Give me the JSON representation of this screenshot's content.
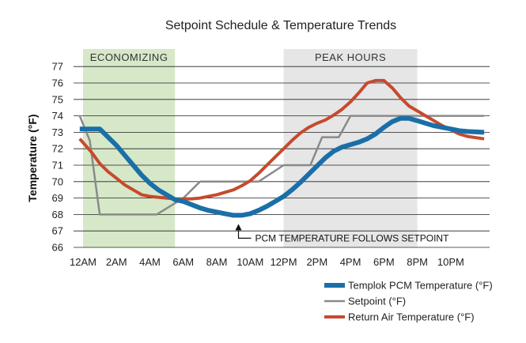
{
  "chart_data": {
    "type": "line",
    "title": "Setpoint Schedule & Temperature Trends",
    "ylabel": "Temperature (°F)",
    "xlabel": "",
    "ylim": [
      66,
      77
    ],
    "yticks": [
      66,
      67,
      68,
      69,
      70,
      71,
      72,
      73,
      74,
      75,
      76,
      77
    ],
    "xlim": [
      0,
      24
    ],
    "xticks": [
      {
        "label": "12AM",
        "h": 0
      },
      {
        "label": "2AM",
        "h": 2
      },
      {
        "label": "4AM",
        "h": 4
      },
      {
        "label": "6AM",
        "h": 6
      },
      {
        "label": "8AM",
        "h": 8
      },
      {
        "label": "10AM",
        "h": 10
      },
      {
        "label": "12PM",
        "h": 12
      },
      {
        "label": "2PM",
        "h": 14
      },
      {
        "label": "4PM",
        "h": 16
      },
      {
        "label": "6PM",
        "h": 18
      },
      {
        "label": "8PM",
        "h": 20
      },
      {
        "label": "10PM",
        "h": 22
      }
    ],
    "bands": [
      {
        "label": "ECONOMIZING",
        "start": 0,
        "end": 5.5,
        "color": "#d6e8c8"
      },
      {
        "label": "PEAK HOURS",
        "start": 12,
        "end": 20,
        "color": "#e6e6e6"
      }
    ],
    "annotation": {
      "text": "PCM TEMPERATURE FOLLOWS SETPOINT",
      "x": 9.3,
      "y": 68
    },
    "series": [
      {
        "name": "Templok PCM Temperature (°F)",
        "color": "#1a6fa8",
        "x": [
          -0.2,
          0.5,
          1,
          1.5,
          2,
          2.5,
          3,
          3.5,
          4,
          4.5,
          5,
          5.5,
          6,
          6.5,
          7,
          7.5,
          8,
          8.5,
          9,
          9.5,
          10,
          10.5,
          11,
          11.5,
          12,
          12.5,
          13,
          13.5,
          14,
          14.5,
          15,
          15.5,
          16,
          16.5,
          17,
          17.5,
          18,
          18.5,
          19,
          19.5,
          20,
          20.5,
          21,
          21.5,
          22,
          22.5,
          23,
          24
        ],
        "values": [
          73.2,
          73.2,
          73.2,
          72.7,
          72.2,
          71.6,
          71.0,
          70.4,
          69.9,
          69.5,
          69.2,
          68.9,
          68.8,
          68.6,
          68.4,
          68.25,
          68.15,
          68.05,
          67.95,
          67.95,
          68.05,
          68.25,
          68.5,
          68.8,
          69.1,
          69.5,
          69.95,
          70.45,
          70.95,
          71.45,
          71.85,
          72.1,
          72.25,
          72.4,
          72.6,
          72.9,
          73.3,
          73.65,
          73.85,
          73.85,
          73.7,
          73.55,
          73.4,
          73.3,
          73.2,
          73.1,
          73.05,
          73.0
        ]
      },
      {
        "name": "Setpoint (°F)",
        "color": "#8a8a8a",
        "x": [
          -0.2,
          0.4,
          1.0,
          3.6,
          4.4,
          6.0,
          7.0,
          8.0,
          10.5,
          12.0,
          13.6,
          14.3,
          15.3,
          16.0,
          17.0,
          24.0
        ],
        "values": [
          74,
          72.5,
          68,
          68,
          68,
          69,
          70,
          70,
          70,
          71,
          71,
          72.7,
          72.7,
          74,
          74,
          74
        ]
      },
      {
        "name": "Return Air Temperature (°F)",
        "color": "#c64a2e",
        "x": [
          -0.2,
          0.5,
          1,
          1.5,
          2,
          2.5,
          3,
          3.5,
          4,
          4.5,
          5,
          5.5,
          6,
          6.5,
          7,
          7.5,
          8,
          8.5,
          9,
          9.5,
          10,
          10.5,
          11,
          11.5,
          12,
          12.5,
          13,
          13.5,
          14,
          14.5,
          15,
          15.5,
          16,
          16.5,
          17,
          17.5,
          18,
          18.5,
          19,
          19.5,
          20,
          20.5,
          21,
          21.5,
          22,
          22.5,
          23,
          24
        ],
        "values": [
          72.6,
          71.8,
          71.1,
          70.6,
          70.2,
          69.8,
          69.5,
          69.2,
          69.1,
          69.05,
          69.0,
          68.95,
          68.95,
          68.95,
          69.0,
          69.1,
          69.2,
          69.35,
          69.5,
          69.75,
          70.05,
          70.5,
          71.0,
          71.5,
          72.0,
          72.5,
          72.95,
          73.3,
          73.55,
          73.75,
          74.05,
          74.4,
          74.85,
          75.4,
          76.0,
          76.15,
          76.15,
          75.7,
          75.1,
          74.6,
          74.3,
          74.0,
          73.7,
          73.4,
          73.15,
          72.9,
          72.75,
          72.6
        ]
      }
    ],
    "legend": {
      "position": "bottom-right"
    }
  }
}
